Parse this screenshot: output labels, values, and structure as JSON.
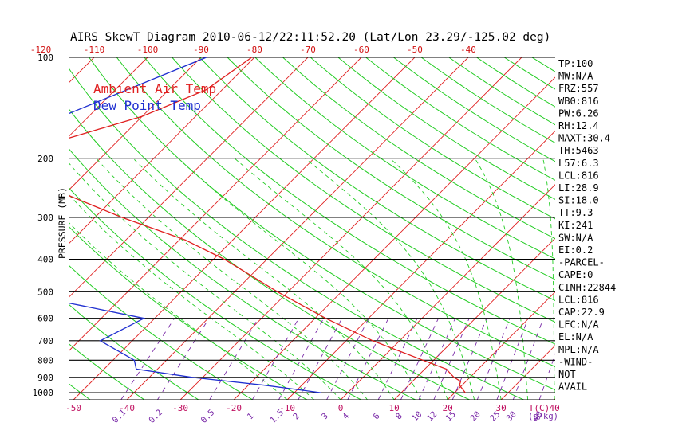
{
  "title": "AIRS SkewT Diagram 2010-06-12/22:11:52.20 (Lat/Lon 23.29/-125.02 deg)",
  "ylabel": "PRESSURE (MB)",
  "legend": [
    {
      "label": "Ambient Air Temp",
      "color": "#e02020"
    },
    {
      "label": "Dew Point Temp",
      "color": "#1f2fd0"
    }
  ],
  "colors": {
    "temperature": "#e02020",
    "dewpoint": "#1f2fd0",
    "isotherm": "#e02020",
    "dry_adiabat": "#22cc22",
    "moist_adiabat": "#22cc22",
    "mixing_ratio": "#7a2aa8",
    "pressure_line": "#000000",
    "bottom_labels": "#c01060",
    "top_labels": "#d01010",
    "stats": "#000000"
  },
  "chart_data": {
    "type": "line",
    "title": "AIRS SkewT Diagram 2010-06-12/22:11:52.20 (Lat/Lon 23.29/-125.02 deg)",
    "ylabel": "PRESSURE (MB)",
    "xlabel": "T(C)",
    "ylim": [
      1050,
      100
    ],
    "y_scale": "log",
    "grid": true,
    "legend_position": "top-left",
    "pressure_ticks": [
      100,
      200,
      300,
      400,
      500,
      600,
      700,
      800,
      900,
      1000
    ],
    "bottom_temp_ticks": [
      -50,
      -40,
      -30,
      -20,
      -10,
      0,
      10,
      20,
      30,
      40
    ],
    "top_temp_ticks": [
      -120,
      -110,
      -100,
      -90,
      -80,
      -70,
      -60,
      -50,
      -40
    ],
    "mixing_ratio_ticks": [
      0.1,
      0.2,
      0.5,
      1,
      1.5,
      2,
      3,
      4,
      6,
      8,
      10,
      12,
      15,
      20,
      25,
      30,
      40
    ],
    "mixing_ratio_unit": "(g/kg)",
    "series": [
      {
        "name": "Ambient Air Temp",
        "points": [
          [
            100,
            -80.5
          ],
          [
            125,
            -83
          ],
          [
            150,
            -90
          ],
          [
            175,
            -100
          ],
          [
            200,
            -111
          ],
          [
            250,
            -92
          ],
          [
            300,
            -75
          ],
          [
            350,
            -59
          ],
          [
            400,
            -48
          ],
          [
            500,
            -32
          ],
          [
            600,
            -18
          ],
          [
            700,
            -5
          ],
          [
            800,
            8
          ],
          [
            850,
            14
          ],
          [
            900,
            17
          ],
          [
            925,
            19
          ],
          [
            950,
            19.5
          ],
          [
            1000,
            22
          ]
        ]
      },
      {
        "name": "Dew Point Temp",
        "points": [
          [
            100,
            -89
          ],
          [
            150,
            -105
          ],
          [
            200,
            -120
          ],
          [
            250,
            -131
          ],
          [
            300,
            -137
          ],
          [
            400,
            -120
          ],
          [
            500,
            -82
          ],
          [
            550,
            -66
          ],
          [
            600,
            -52
          ],
          [
            700,
            -56
          ],
          [
            800,
            -46
          ],
          [
            850,
            -44
          ],
          [
            900,
            -32
          ],
          [
            950,
            -17
          ],
          [
            1000,
            -5
          ]
        ]
      }
    ]
  },
  "stats": [
    "TP:100",
    "MW:N/A",
    "FRZ:557",
    "WB0:816",
    "PW:6.26",
    "RH:12.4",
    "MAXT:30.4",
    "TH:5463",
    "L57:6.3",
    "LCL:816",
    "LI:28.9",
    "SI:18.0",
    "TT:9.3",
    "KI:241",
    "SW:N/A",
    "EI:0.2",
    "-PARCEL-",
    "CAPE:0",
    "CINH:22844",
    "LCL:816",
    "CAP:22.9",
    "LFC:N/A",
    "EL:N/A",
    "MPL:N/A",
    "-WIND-",
    "NOT",
    "AVAIL"
  ]
}
